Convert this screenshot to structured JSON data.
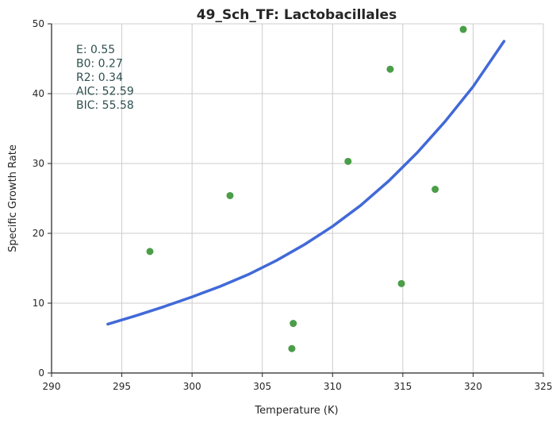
{
  "chart_data": {
    "type": "scatter",
    "title": "49_Sch_TF: Lactobacillales",
    "xlabel": "Temperature (K)",
    "ylabel": "Specific Growth Rate",
    "xlim": [
      290,
      325
    ],
    "ylim": [
      0,
      50
    ],
    "xticks": [
      290,
      295,
      300,
      305,
      310,
      315,
      320,
      325
    ],
    "yticks": [
      0,
      10,
      20,
      30,
      40,
      50
    ],
    "grid": true,
    "colors": {
      "points": "#4a9e48",
      "fit": "#4169d8"
    },
    "points": [
      {
        "x": 297.0,
        "y": 17.4
      },
      {
        "x": 302.7,
        "y": 25.4
      },
      {
        "x": 307.1,
        "y": 3.5
      },
      {
        "x": 307.2,
        "y": 7.1
      },
      {
        "x": 311.1,
        "y": 30.3
      },
      {
        "x": 314.1,
        "y": 43.5
      },
      {
        "x": 314.9,
        "y": 12.8
      },
      {
        "x": 317.3,
        "y": 26.3
      },
      {
        "x": 319.3,
        "y": 49.2
      }
    ],
    "fit_line": {
      "x": [
        294.0,
        296.0,
        298.0,
        300.0,
        302.0,
        304.0,
        306.0,
        308.0,
        310.0,
        312.0,
        314.0,
        316.0,
        318.0,
        320.0,
        322.2
      ],
      "y": [
        7.0,
        8.2,
        9.5,
        10.9,
        12.4,
        14.1,
        16.1,
        18.4,
        21.0,
        24.0,
        27.5,
        31.5,
        36.0,
        41.0,
        47.5
      ]
    },
    "annotations": [
      "E:  0.55",
      "B0:  0.27",
      "R2:  0.34",
      "AIC: 52.59",
      "BIC: 55.58"
    ]
  }
}
